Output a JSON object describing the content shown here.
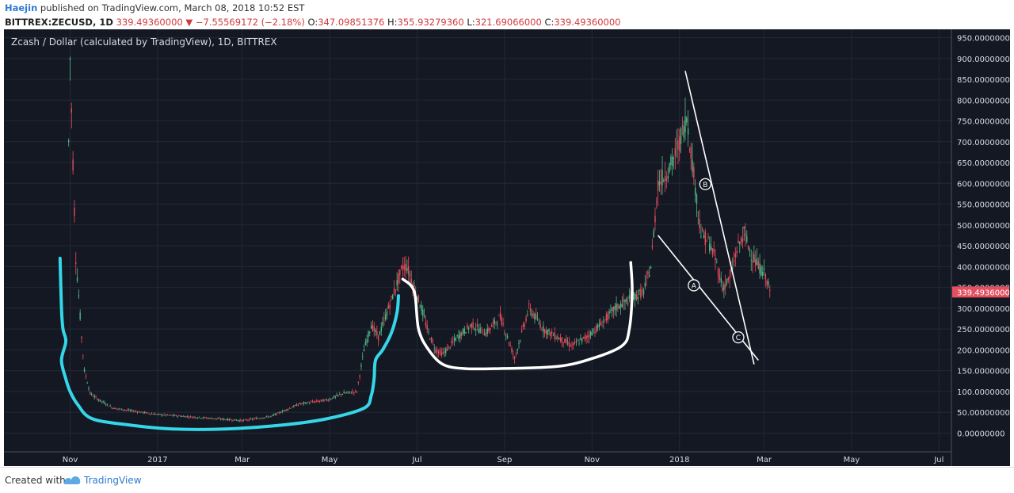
{
  "header": {
    "author": "Haejin",
    "published": "published on TradingView.com, March 08, 2018 10:52 EST",
    "symbol": "BITTREX:ZECUSD, 1D",
    "last": "339.49360000",
    "change": "−7.55569172 (−2.18%)",
    "o_label": "O:",
    "o_value": "347.09851376",
    "h_label": "H:",
    "h_value": "355.93279360",
    "l_label": "L:",
    "l_value": "321.69066000",
    "c_label": "C:",
    "c_value": "339.49360000"
  },
  "chart_data": {
    "type": "candlestick",
    "title": "Zcash / Dollar (calculated by TradingView), 1D, BITTREX",
    "x_labels": [
      "Nov",
      "2017",
      "Mar",
      "May",
      "Jul",
      "Sep",
      "Nov",
      "2018",
      "Mar",
      "May",
      "Jul"
    ],
    "x_label_days": [
      0,
      61,
      120,
      181,
      242,
      303,
      364,
      425,
      484,
      545,
      606
    ],
    "y_ticks": [
      0,
      50,
      100,
      150,
      200,
      250,
      300,
      350,
      400,
      450,
      500,
      550,
      600,
      650,
      700,
      750,
      800,
      850,
      900,
      950
    ],
    "y_tick_labels": [
      "0.00000000",
      "50.00000000",
      "100.00000000",
      "150.00000000",
      "200.00000000",
      "250.00000000",
      "300.00000000",
      "350.00000000",
      "400.00000000",
      "450.00000000",
      "500.00000000",
      "550.00000000",
      "600.00000000",
      "650.00000000",
      "700.00000000",
      "750.00000000",
      "800.00000000",
      "850.00000000",
      "900.00000000",
      "950.00000000"
    ],
    "ylim": [
      -45,
      970
    ],
    "last_price_label": "339.49360000",
    "grid": true,
    "colors": {
      "background": "#141823",
      "up": "#53b987",
      "down": "#eb4d5c",
      "grid": "#232838",
      "cyan": "#35d6e8",
      "white": "#ffffff",
      "price_tag": "#e4505f"
    },
    "series_approx": {
      "name": "ZECUSD daily close (approx.)",
      "x_days": [
        -1,
        0,
        2,
        4,
        6,
        8,
        10,
        14,
        20,
        30,
        40,
        60,
        80,
        100,
        120,
        140,
        160,
        170,
        180,
        190,
        200,
        205,
        210,
        215,
        220,
        225,
        230,
        232,
        235,
        240,
        245,
        250,
        255,
        260,
        270,
        280,
        290,
        300,
        305,
        310,
        320,
        330,
        340,
        350,
        360,
        370,
        380,
        390,
        400,
        405,
        410,
        415,
        420,
        425,
        430,
        435,
        440,
        445,
        450,
        455,
        460,
        465,
        470,
        475,
        480,
        485,
        488
      ],
      "close": [
        700,
        900,
        650,
        420,
        330,
        230,
        150,
        95,
        80,
        60,
        55,
        45,
        40,
        35,
        30,
        40,
        70,
        75,
        80,
        95,
        100,
        200,
        260,
        230,
        280,
        330,
        380,
        400,
        400,
        350,
        300,
        240,
        200,
        190,
        230,
        260,
        240,
        280,
        230,
        180,
        300,
        250,
        230,
        210,
        230,
        260,
        300,
        320,
        340,
        400,
        600,
        620,
        650,
        700,
        760,
        620,
        480,
        460,
        420,
        350,
        370,
        440,
        480,
        430,
        400,
        380,
        339
      ]
    },
    "annotations": {
      "cyan_curve_days_values": [
        [
          -7,
          420
        ],
        [
          -6,
          300
        ],
        [
          -5,
          250
        ],
        [
          -3,
          220
        ],
        [
          -6,
          175
        ],
        [
          -3,
          130
        ],
        [
          0,
          100
        ],
        [
          5,
          70
        ],
        [
          15,
          35
        ],
        [
          40,
          20
        ],
        [
          70,
          10
        ],
        [
          110,
          10
        ],
        [
          150,
          20
        ],
        [
          180,
          35
        ],
        [
          205,
          60
        ],
        [
          210,
          90
        ],
        [
          212,
          130
        ],
        [
          213,
          175
        ],
        [
          218,
          200
        ],
        [
          224,
          240
        ],
        [
          228,
          290
        ],
        [
          229,
          330
        ]
      ],
      "white_curve_days_values": [
        [
          232,
          370
        ],
        [
          240,
          340
        ],
        [
          243,
          250
        ],
        [
          250,
          200
        ],
        [
          260,
          165
        ],
        [
          275,
          155
        ],
        [
          300,
          155
        ],
        [
          340,
          160
        ],
        [
          365,
          180
        ],
        [
          385,
          210
        ],
        [
          390,
          250
        ],
        [
          392,
          340
        ],
        [
          391,
          410
        ]
      ],
      "white_line_1_days_values": [
        [
          429,
          870
        ],
        [
          477,
          165
        ]
      ],
      "white_line_2_days_values": [
        [
          410,
          475
        ],
        [
          480,
          175
        ]
      ],
      "labels": [
        {
          "text": "B",
          "day": 443,
          "value": 598
        },
        {
          "text": "A",
          "day": 435,
          "value": 355
        },
        {
          "text": "C",
          "day": 466,
          "value": 230
        }
      ]
    }
  },
  "footer": {
    "created_with": "Created with",
    "brand": "TradingView"
  }
}
